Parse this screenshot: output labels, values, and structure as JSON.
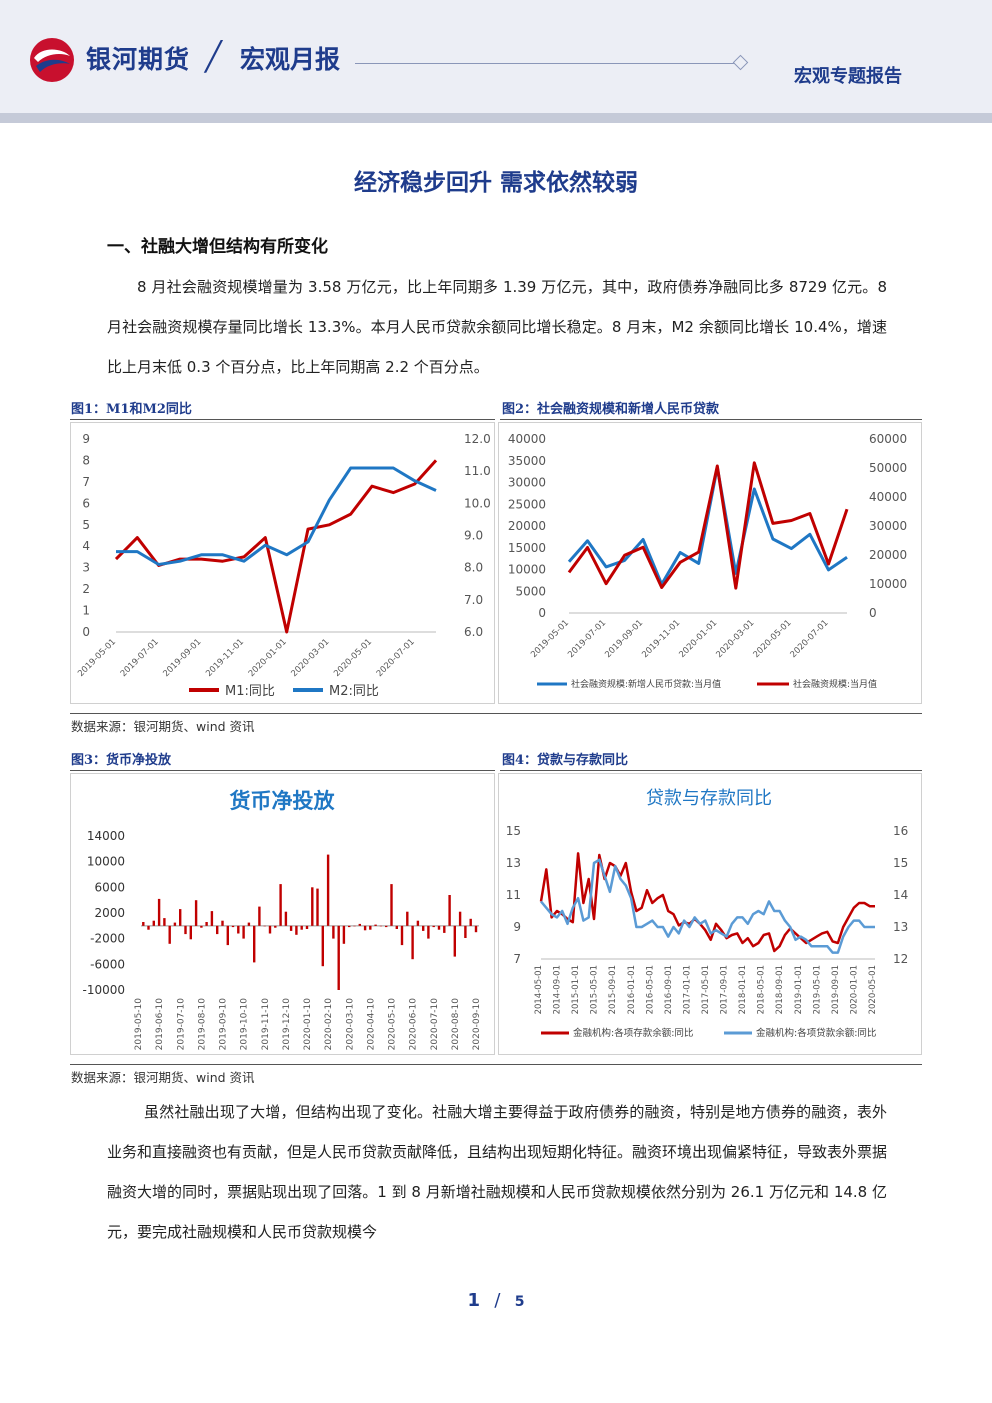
{
  "header": {
    "brand": "银河期货",
    "separator": "╱",
    "subbrand": "宏观月报",
    "report_type": "宏观专题报告"
  },
  "title": "经济稳步回升 需求依然较弱",
  "section1_title": "一、社融大增但结构有所变化",
  "para1": "8 月社会融资规模增量为 3.58 万亿元，比上年同期多 1.39 万亿元，其中，政府债券净融同比多 8729 亿元。8 月社会融资规模存量同比增长 13.3%。本月人民币贷款余额同比增长稳定。8 月末，M2 余额同比增长 10.4%，增速比上月末低 0.3 个百分点，比上年同期高 2.2 个百分点。",
  "para2": "虽然社融出现了大增，但结构出现了变化。社融大增主要得益于政府债券的融资，特别是地方债券的融资，表外业务和直接融资也有贡献，但是人民币贷款贡献降低，且结构出现短期化特征。融资环境出现偏紧特征，导致表外票据融资大增的同时，票据贴现出现了回落。1 到 8 月新增社融规模和人民币贷款规模依然分别为 26.1 万亿元和 14.8 亿元，要完成社融规模和人民币贷款规模今",
  "source_note": "数据来源：银河期货、wind 资讯",
  "fig1_title": "图1：M1和M2同比",
  "fig2_title": "图2：社会融资规模和新增人民币贷款",
  "fig3_title": "图3：货币净投放",
  "fig4_title": "图4：贷款与存款同比",
  "pager": {
    "current": "1",
    "sep": "/",
    "total": "5"
  },
  "colors": {
    "red": "#c00000",
    "blue": "#1f77c4",
    "lightblue": "#5b9bd5",
    "brand": "#1f3c8c"
  },
  "chart_data": [
    {
      "id": "fig1",
      "type": "line",
      "x": [
        "2019-05-01",
        "2019-06-01",
        "2019-07-01",
        "2019-08-01",
        "2019-09-01",
        "2019-10-01",
        "2019-11-01",
        "2019-12-01",
        "2020-01-01",
        "2020-02-01",
        "2020-03-01",
        "2020-04-01",
        "2020-05-01",
        "2020-06-01",
        "2020-07-01",
        "2020-08-01"
      ],
      "xticks": [
        "2019-05-01",
        "2019-07-01",
        "2019-09-01",
        "2019-11-01",
        "2020-01-01",
        "2020-03-01",
        "2020-05-01",
        "2020-07-01"
      ],
      "series": [
        {
          "name": "M1:同比",
          "axis": "left",
          "color": "#c00000",
          "values": [
            3.4,
            4.4,
            3.1,
            3.4,
            3.4,
            3.3,
            3.5,
            4.4,
            0.0,
            4.8,
            5.0,
            5.5,
            6.8,
            6.5,
            6.9,
            8.0
          ]
        },
        {
          "name": "M2:同比",
          "axis": "right",
          "color": "#1f77c4",
          "values": [
            8.5,
            8.5,
            8.1,
            8.2,
            8.4,
            8.4,
            8.2,
            8.7,
            8.4,
            8.8,
            10.1,
            11.1,
            11.1,
            11.1,
            10.7,
            10.4
          ]
        }
      ],
      "yleft": {
        "min": 0,
        "max": 9,
        "ticks": [
          "0",
          "1",
          "2",
          "3",
          "4",
          "5",
          "6",
          "7",
          "8",
          "9"
        ]
      },
      "yright": {
        "min": 6.0,
        "max": 12.0,
        "ticks": [
          "6.0",
          "7.0",
          "8.0",
          "9.0",
          "10.0",
          "11.0",
          "12.0"
        ]
      }
    },
    {
      "id": "fig2",
      "type": "line",
      "x": [
        "2019-05",
        "2019-06",
        "2019-07",
        "2019-08",
        "2019-09",
        "2019-10",
        "2019-11",
        "2019-12",
        "2020-01",
        "2020-02",
        "2020-03",
        "2020-04",
        "2020-05",
        "2020-06",
        "2020-07",
        "2020-08"
      ],
      "xticks": [
        "2019-05-01",
        "2019-07-01",
        "2019-09-01",
        "2019-11-01",
        "2020-01-01",
        "2020-03-01",
        "2020-05-01",
        "2020-07-01"
      ],
      "series": [
        {
          "name": "社会融资规模:新增人民币贷款:当月值",
          "axis": "left",
          "color": "#1f77c4",
          "values": [
            11800,
            16600,
            10600,
            12100,
            16900,
            6600,
            13900,
            11400,
            33500,
            9100,
            28500,
            17000,
            14800,
            18100,
            9900,
            12800
          ]
        },
        {
          "name": "社会融资规模:当月值",
          "axis": "right",
          "color": "#c00000",
          "values": [
            14000,
            22600,
            10100,
            19900,
            22700,
            8800,
            17500,
            21000,
            50700,
            8600,
            51800,
            30900,
            31900,
            34300,
            16900,
            35800
          ]
        }
      ],
      "yleft": {
        "min": 0,
        "max": 40000,
        "ticks": [
          "0",
          "5000",
          "10000",
          "15000",
          "20000",
          "25000",
          "30000",
          "35000",
          "40000"
        ]
      },
      "yright": {
        "min": 0,
        "max": 60000,
        "ticks": [
          "0",
          "10000",
          "20000",
          "30000",
          "40000",
          "50000",
          "60000"
        ]
      }
    },
    {
      "id": "fig3",
      "type": "bar",
      "title": "货币净投放",
      "xticks": [
        "2019-05-10",
        "2019-06-10",
        "2019-07-10",
        "2019-08-10",
        "2019-09-10",
        "2019-10-10",
        "2019-11-10",
        "2019-12-10",
        "2020-01-10",
        "2020-02-10",
        "2020-03-10",
        "2020-04-10",
        "2020-05-10",
        "2020-06-10",
        "2020-07-10",
        "2020-08-10",
        "2020-09-10"
      ],
      "values": [
        600,
        -600,
        800,
        4200,
        1200,
        -2800,
        500,
        2600,
        -1300,
        -2100,
        4000,
        -300,
        600,
        2300,
        -1300,
        800,
        -3000,
        -200,
        -1200,
        -2000,
        500,
        -5700,
        3000,
        0,
        -1200,
        -300,
        6500,
        2200,
        -800,
        -1400,
        -600,
        -500,
        6000,
        5800,
        -6300,
        11100,
        -2000,
        -10000,
        -2800,
        -200,
        0,
        300,
        -700,
        -600,
        200,
        0,
        -200,
        6500,
        -500,
        -3000,
        2200,
        -5200,
        800,
        -800,
        -2000,
        -200,
        -600,
        -1100,
        4800,
        -4800,
        2200,
        -1900,
        1100,
        -1000
      ],
      "yticks": [
        "14000",
        "10000",
        "6000",
        "2000",
        "-2000",
        "-6000",
        "-10000"
      ],
      "ymin": -10000,
      "ymax": 14000
    },
    {
      "id": "fig4",
      "type": "line",
      "title": "贷款与存款同比",
      "xticks": [
        "2014-05-01",
        "2014-09-01",
        "2015-01-01",
        "2015-05-01",
        "2015-09-01",
        "2016-01-01",
        "2016-05-01",
        "2016-09-01",
        "2017-01-01",
        "2017-05-01",
        "2017-09-01",
        "2018-01-01",
        "2018-05-01",
        "2018-09-01",
        "2019-01-01",
        "2019-05-01",
        "2019-09-01",
        "2020-01-01",
        "2020-05-01"
      ],
      "series": [
        {
          "name": "金融机构:各项存款余额:同比",
          "axis": "left",
          "color": "#c00000",
          "values": [
            10.6,
            12.6,
            9.6,
            10.0,
            9.8,
            9.5,
            9.3,
            13.6,
            10.5,
            12.0,
            9.5,
            13.5,
            12.0,
            13.0,
            12.8,
            12.2,
            13.0,
            11.2,
            10.0,
            10.2,
            11.3,
            10.5,
            10.8,
            11.0,
            10.0,
            9.8,
            9.1,
            9.3,
            9.2,
            9.5,
            9.2,
            8.8,
            8.2,
            9.2,
            8.8,
            8.3,
            8.5,
            8.6,
            8.0,
            8.3,
            7.8,
            8.0,
            8.5,
            8.6,
            7.5,
            7.8,
            8.5,
            8.9,
            8.6,
            8.3,
            8.0,
            8.2,
            8.4,
            8.6,
            8.7,
            8.1,
            8.0,
            9.0,
            9.6,
            10.2,
            10.5,
            10.5,
            10.3,
            10.3
          ]
        },
        {
          "name": "金融机构:各项贷款余额:同比",
          "axis": "right",
          "color": "#5b9bd5",
          "values": [
            13.8,
            13.6,
            13.4,
            13.3,
            13.5,
            13.1,
            13.6,
            13.9,
            13.2,
            13.3,
            15.0,
            15.1,
            14.6,
            14.1,
            14.9,
            14.5,
            14.3,
            13.9,
            13.0,
            13.0,
            13.1,
            13.2,
            13.0,
            13.0,
            12.7,
            13.0,
            12.8,
            13.2,
            13.0,
            13.3,
            13.1,
            13.2,
            12.8,
            12.9,
            12.8,
            12.7,
            13.1,
            13.3,
            13.3,
            13.1,
            13.4,
            13.5,
            13.4,
            13.8,
            13.5,
            13.5,
            13.2,
            13.0,
            12.6,
            12.7,
            12.6,
            12.4,
            12.4,
            12.4,
            12.4,
            12.2,
            12.2,
            12.7,
            13.0,
            13.2,
            13.2,
            13.0,
            13.0,
            13.0
          ]
        }
      ],
      "yleft": {
        "min": 7,
        "max": 15,
        "ticks": [
          "7",
          "9",
          "11",
          "13",
          "15"
        ]
      },
      "yright": {
        "min": 12,
        "max": 16,
        "ticks": [
          "12",
          "13",
          "14",
          "15",
          "16"
        ]
      }
    }
  ]
}
